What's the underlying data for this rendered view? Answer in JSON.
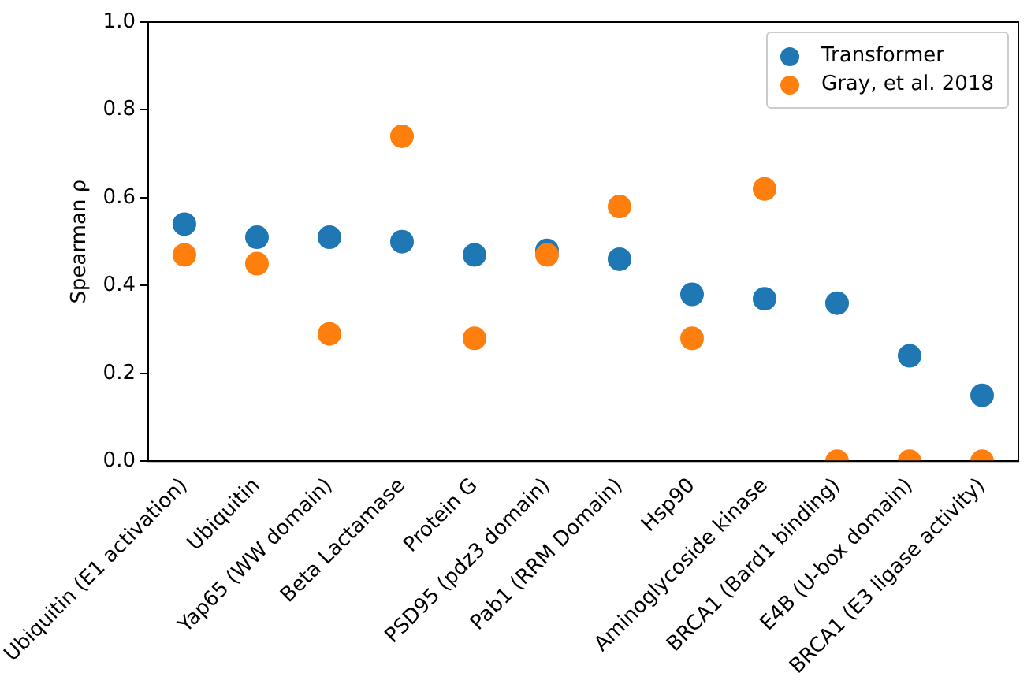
{
  "chart_data": {
    "type": "scatter",
    "ylabel": "Spearman ρ",
    "categories": [
      "Ubiquitin (E1 activation)",
      "Ubiquitin",
      "Yap65 (WW domain)",
      "Beta Lactamase",
      "Protein G",
      "PSD95 (pdz3 domain)",
      "Pab1 (RRM Domain)",
      "Hsp90",
      "Aminoglycoside kinase",
      "BRCA1 (Bard1 binding)",
      "E4B (U-box domain)",
      "BRCA1 (E3 ligase activity)"
    ],
    "series": [
      {
        "name": "Transformer",
        "color": "#1f77b4",
        "values": [
          0.54,
          0.51,
          0.51,
          0.5,
          0.47,
          0.48,
          0.46,
          0.38,
          0.37,
          0.36,
          0.24,
          0.15
        ]
      },
      {
        "name": "Gray, et al. 2018",
        "color": "#ff7f0e",
        "values": [
          0.47,
          0.45,
          0.29,
          0.74,
          0.28,
          0.47,
          0.58,
          0.28,
          0.62,
          0,
          0,
          0
        ]
      }
    ],
    "ylim": [
      0,
      1
    ],
    "yticks": [
      {
        "value": 0,
        "label": "0.0"
      },
      {
        "value": 0.2,
        "label": "0.2"
      },
      {
        "value": 0.4,
        "label": "0.4"
      },
      {
        "value": 0.6,
        "label": "0.6"
      },
      {
        "value": 0.8,
        "label": "0.8"
      },
      {
        "value": 1,
        "label": "1.0"
      }
    ],
    "grid": false,
    "legend": "top right",
    "marker": "circle"
  }
}
